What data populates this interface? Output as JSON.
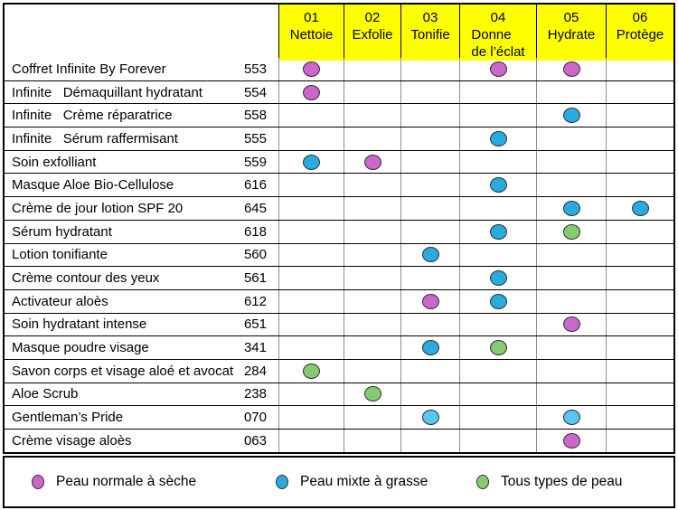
{
  "table": {
    "columns": [
      {
        "code": "01",
        "label": "Nettoie"
      },
      {
        "code": "02",
        "label": "Exfolie"
      },
      {
        "code": "03",
        "label": "Tonifie"
      },
      {
        "code": "04",
        "label": "Donne\nde l’éclat"
      },
      {
        "code": "05",
        "label": "Hydrate"
      },
      {
        "code": "06",
        "label": "Protège"
      }
    ],
    "products": [
      {
        "name": "Coffret Infinite By Forever",
        "ref": "553",
        "dots": {
          "1": "magenta",
          "4": "magenta",
          "5": "magenta"
        }
      },
      {
        "name": "Infinite   Démaquillant hydratant",
        "ref": "554",
        "dots": {
          "1": "magenta"
        }
      },
      {
        "name": "Infinite   Crème réparatrice",
        "ref": "558",
        "dots": {
          "5": "blue"
        }
      },
      {
        "name": "Infinite   Sérum raffermisant",
        "ref": "555",
        "dots": {
          "4": "blue"
        }
      },
      {
        "name": "Soin exfolliant",
        "ref": "559",
        "dots": {
          "1": "blue",
          "2": "magenta"
        }
      },
      {
        "name": "Masque Aloe Bio-Cellulose",
        "ref": "616",
        "dots": {
          "4": "blue"
        }
      },
      {
        "name": "Crème de jour lotion SPF 20",
        "ref": "645",
        "dots": {
          "5": "blue",
          "6": "blue"
        }
      },
      {
        "name": "Sérum hydratant",
        "ref": "618",
        "dots": {
          "4": "blue",
          "5": "green"
        }
      },
      {
        "name": "Lotion tonifiante",
        "ref": "560",
        "dots": {
          "3": "blue"
        }
      },
      {
        "name": "Crème contour des yeux",
        "ref": "561",
        "dots": {
          "4": "blue"
        }
      },
      {
        "name": "Activateur aloès",
        "ref": "612",
        "dots": {
          "3": "magenta",
          "4": "blue"
        }
      },
      {
        "name": "Soin hydratant intense",
        "ref": "651",
        "dots": {
          "5": "magenta"
        }
      },
      {
        "name": "Masque poudre visage",
        "ref": "341",
        "dots": {
          "3": "blue",
          "4": "green"
        }
      },
      {
        "name": "Savon corps et visage aloé et avocat",
        "ref": "284",
        "dots": {
          "1": "green"
        }
      },
      {
        "name": "Aloe Scrub",
        "ref": "238",
        "dots": {
          "2": "green"
        }
      },
      {
        "name": "Gentleman’s Pride",
        "ref": "070",
        "dots": {
          "3": "lightblue",
          "5": "lightblue"
        }
      },
      {
        "name": "Crème visage aloès",
        "ref": "063",
        "dots": {
          "5": "magenta"
        }
      }
    ]
  },
  "legend": {
    "items": [
      {
        "label": "Peau normale à sèche",
        "color": "magenta"
      },
      {
        "label": "Peau mixte à grasse",
        "color": "blue"
      },
      {
        "label": "Tous types de peau",
        "color": "green"
      }
    ]
  },
  "colors": {
    "header_bg": "#FFFF00",
    "magenta": "#CC66CC",
    "blue": "#29ABE2",
    "lightblue": "#55C7F0",
    "green": "#84CB72",
    "dot_outline": "#2E2E2E"
  }
}
